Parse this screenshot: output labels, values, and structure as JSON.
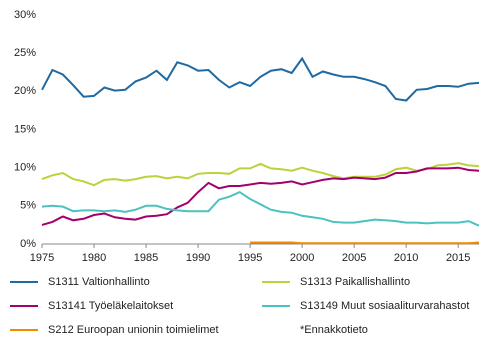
{
  "chart_data": {
    "type": "line",
    "x": [
      1975,
      1976,
      1977,
      1978,
      1979,
      1980,
      1981,
      1982,
      1983,
      1984,
      1985,
      1986,
      1987,
      1988,
      1989,
      1990,
      1991,
      1992,
      1993,
      1994,
      1995,
      1996,
      1997,
      1998,
      1999,
      2000,
      2001,
      2002,
      2003,
      2004,
      2005,
      2006,
      2007,
      2008,
      2009,
      2010,
      2011,
      2012,
      2013,
      2014,
      2015,
      2016,
      2017
    ],
    "series": [
      {
        "name": "S1311 Valtionhallinto",
        "color": "#1f6aa0",
        "values": [
          20.2,
          22.8,
          22.2,
          20.8,
          19.3,
          19.4,
          20.5,
          20.1,
          20.2,
          21.3,
          21.8,
          22.7,
          21.5,
          23.8,
          23.4,
          22.7,
          22.8,
          21.5,
          20.5,
          21.2,
          20.7,
          21.9,
          22.7,
          22.9,
          22.4,
          24.3,
          21.9,
          22.6,
          22.2,
          21.9,
          21.9,
          21.6,
          21.2,
          20.7,
          19.0,
          18.8,
          20.2,
          20.3,
          20.7,
          20.7,
          20.6,
          21.0,
          21.1
        ]
      },
      {
        "name": "S1313 Paikallishallinto",
        "color": "#bfd13a",
        "values": [
          8.5,
          9.0,
          9.3,
          8.5,
          8.2,
          7.7,
          8.4,
          8.5,
          8.3,
          8.5,
          8.8,
          8.9,
          8.6,
          8.8,
          8.6,
          9.2,
          9.3,
          9.3,
          9.2,
          9.9,
          9.9,
          10.5,
          9.9,
          9.8,
          9.6,
          10.0,
          9.6,
          9.3,
          8.9,
          8.6,
          8.8,
          8.8,
          8.8,
          9.1,
          9.8,
          10.0,
          9.6,
          9.8,
          10.3,
          10.4,
          10.6,
          10.3,
          10.2
        ]
      },
      {
        "name": "S13141 Työeläkelaitokset",
        "color": "#a3006e",
        "values": [
          2.5,
          2.9,
          3.6,
          3.1,
          3.3,
          3.8,
          4.0,
          3.5,
          3.3,
          3.2,
          3.6,
          3.7,
          3.9,
          4.8,
          5.4,
          6.8,
          8.0,
          7.3,
          7.6,
          7.6,
          7.8,
          8.0,
          7.9,
          8.0,
          8.2,
          7.8,
          8.1,
          8.4,
          8.6,
          8.5,
          8.7,
          8.6,
          8.5,
          8.7,
          9.3,
          9.3,
          9.5,
          9.9,
          9.9,
          9.9,
          10.0,
          9.7,
          9.6
        ]
      },
      {
        "name": "S13149 Muut sosiaaliturvarahastot",
        "color": "#4cc1c2",
        "values": [
          4.9,
          5.0,
          4.9,
          4.3,
          4.4,
          4.4,
          4.3,
          4.4,
          4.2,
          4.5,
          5.0,
          5.0,
          4.6,
          4.4,
          4.3,
          4.3,
          4.3,
          5.8,
          6.2,
          6.8,
          5.9,
          5.2,
          4.5,
          4.2,
          4.1,
          3.7,
          3.5,
          3.3,
          2.9,
          2.8,
          2.8,
          3.0,
          3.2,
          3.1,
          3.0,
          2.8,
          2.8,
          2.7,
          2.8,
          2.8,
          2.8,
          3.0,
          2.4
        ]
      },
      {
        "name": "S212 Euroopan unionin toimielimet",
        "color": "#f08a00",
        "values": [
          null,
          null,
          null,
          null,
          null,
          null,
          null,
          null,
          null,
          null,
          null,
          null,
          null,
          null,
          null,
          null,
          null,
          null,
          null,
          null,
          0.2,
          0.2,
          0.2,
          0.2,
          0.2,
          0.1,
          0.1,
          0.1,
          0.1,
          0.1,
          0.1,
          0.1,
          0.1,
          0.1,
          0.1,
          0.1,
          0.1,
          0.1,
          0.1,
          0.1,
          0.1,
          0.1,
          0.2
        ]
      }
    ],
    "annotation": "*Ennakkotieto",
    "xlim": [
      1975,
      2017
    ],
    "xticks": [
      1975,
      1980,
      1985,
      1990,
      1995,
      2000,
      2005,
      2010,
      2015
    ],
    "ylim": [
      0,
      30
    ],
    "yticks": [
      {
        "value": 0,
        "label": "0%"
      },
      {
        "value": 5,
        "label": "5%"
      },
      {
        "value": 10,
        "label": "10%"
      },
      {
        "value": 15,
        "label": "15%"
      },
      {
        "value": 20,
        "label": "20%"
      },
      {
        "value": 25,
        "label": "25%"
      },
      {
        "value": 30,
        "label": "30%"
      }
    ],
    "grid": false,
    "legend": "bottom"
  }
}
